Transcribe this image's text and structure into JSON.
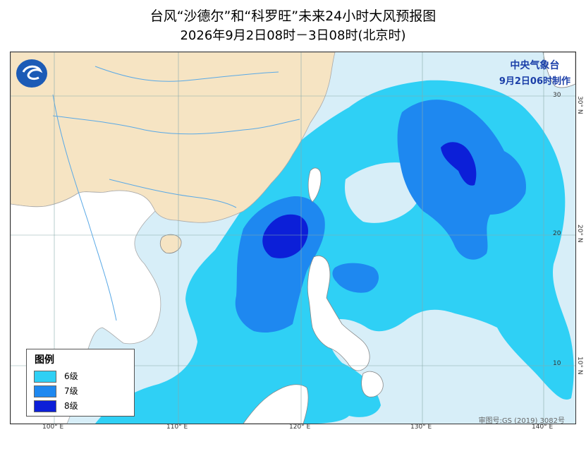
{
  "title_line1": "台风“沙德尔”和“科罗旺”未来24小时大风预报图",
  "title_line2": "2026年9月2日08时－3日08时(北京时)",
  "agency": {
    "name": "中央气象台",
    "issued": "9月2日06时制作"
  },
  "legend": {
    "title": "图例",
    "items": [
      {
        "label": "6级",
        "color": "#2fd0f5"
      },
      {
        "label": "7级",
        "color": "#1e88f0"
      },
      {
        "label": "8级",
        "color": "#0c1fd8"
      }
    ]
  },
  "lon_labels": [
    "100° E",
    "110° E",
    "120° E",
    "130° E",
    "140° E"
  ],
  "lat_labels": [
    "30° N",
    "20° N",
    "10° N"
  ],
  "lat_small": [
    "30",
    "20",
    "10"
  ],
  "credit": "审图号:GS (2019) 3082号",
  "colors": {
    "sea": "#d7eef8",
    "land_china": "#f6e4c3",
    "land_other": "#ffffff",
    "boundary": "#a9a9a9",
    "river": "#5aa9e6"
  }
}
